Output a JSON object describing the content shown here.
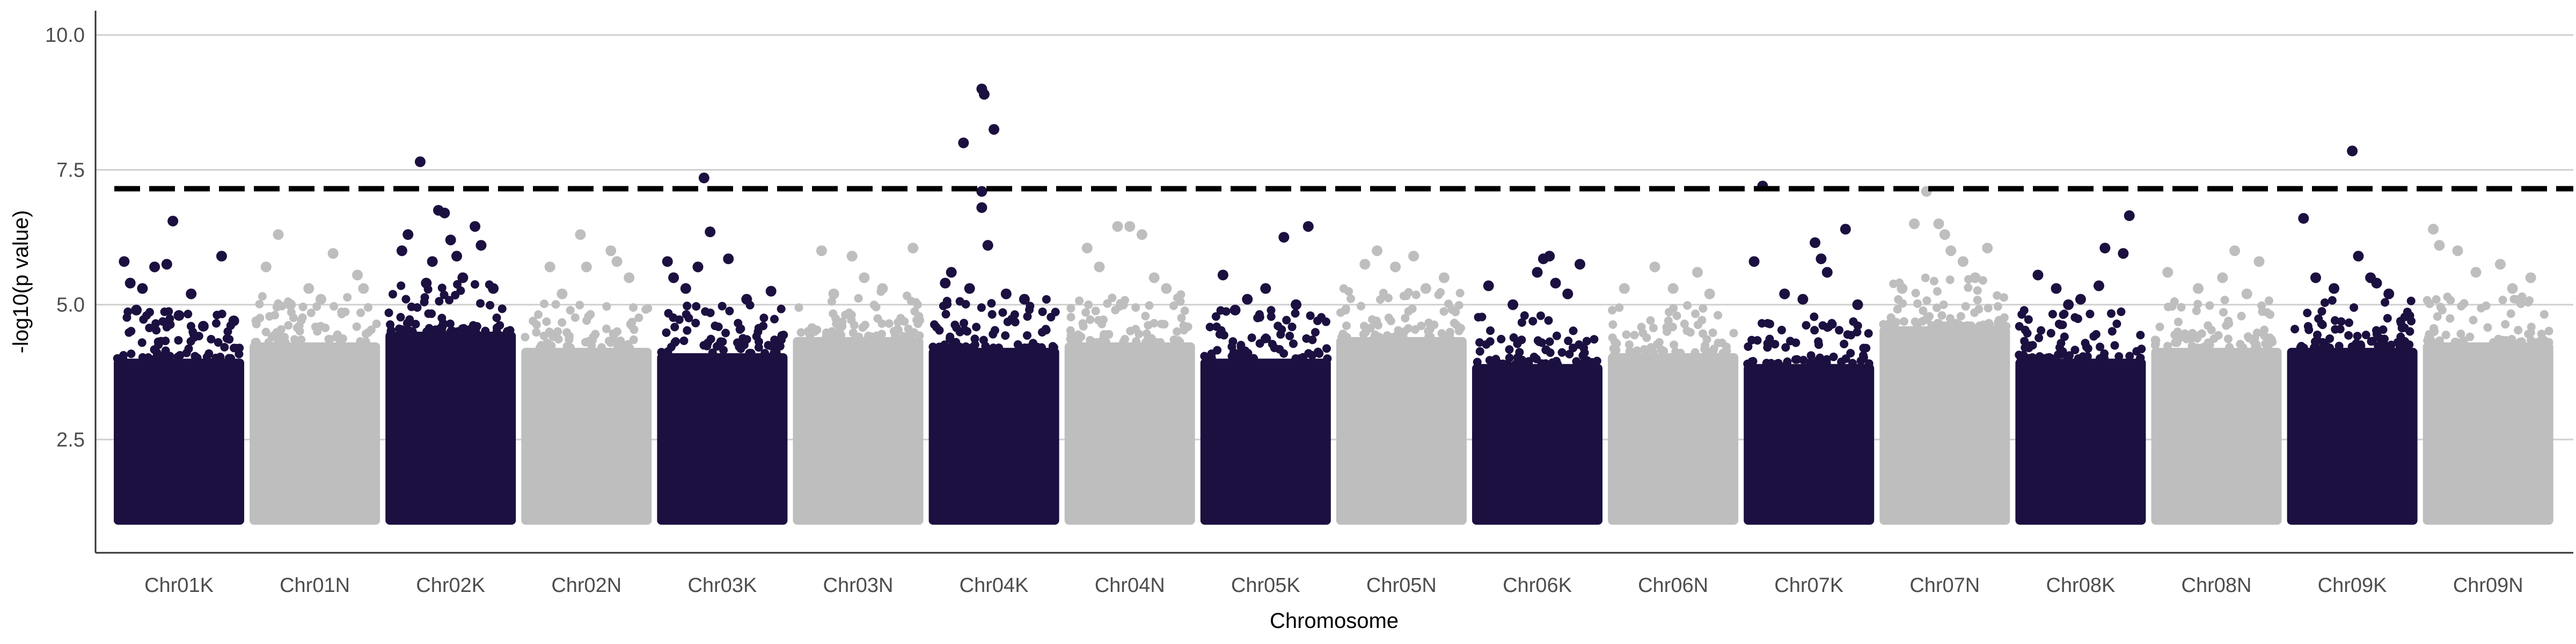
{
  "chart_data": {
    "type": "scatter",
    "xlabel": "Chromosome",
    "ylabel": "-log10(p value)",
    "ylim": [
      0.4,
      10.45
    ],
    "yticks": [
      2.5,
      5.0,
      7.5,
      10.0
    ],
    "ytick_labels": [
      "2.5",
      "5.0",
      "7.5",
      "10.0"
    ],
    "categories": [
      "Chr01K",
      "Chr01N",
      "Chr02K",
      "Chr02N",
      "Chr03K",
      "Chr03N",
      "Chr04K",
      "Chr04N",
      "Chr05K",
      "Chr05N",
      "Chr06K",
      "Chr06N",
      "Chr07K",
      "Chr07N",
      "Chr08K",
      "Chr08N",
      "Chr09K",
      "Chr09N"
    ],
    "threshold": 7.15,
    "point_floor": 1.0,
    "colors": {
      "K": "#1c1040",
      "N": "#bebebe",
      "grid": "#d0d0d0",
      "axis": "#333333",
      "threshold": "#000000"
    },
    "grid": true,
    "legend": "none",
    "series": [
      {
        "chromosome": "Chr01K",
        "dense_top": 4.0,
        "top_points": [
          [
            0.05,
            5.8
          ],
          [
            0.1,
            5.4
          ],
          [
            0.2,
            5.3
          ],
          [
            0.3,
            5.7
          ],
          [
            0.4,
            5.75
          ],
          [
            0.45,
            6.55
          ],
          [
            0.6,
            5.2
          ],
          [
            0.85,
            5.9
          ],
          [
            0.5,
            4.8
          ],
          [
            0.7,
            4.6
          ],
          [
            0.15,
            4.9
          ],
          [
            0.95,
            4.7
          ]
        ]
      },
      {
        "chromosome": "Chr01N",
        "dense_top": 4.3,
        "top_points": [
          [
            0.1,
            5.7
          ],
          [
            0.2,
            6.3
          ],
          [
            0.3,
            5.0
          ],
          [
            0.45,
            5.3
          ],
          [
            0.65,
            5.95
          ],
          [
            0.85,
            5.55
          ],
          [
            0.9,
            5.3
          ],
          [
            0.55,
            5.1
          ]
        ]
      },
      {
        "chromosome": "Chr02K",
        "dense_top": 4.5,
        "top_points": [
          [
            0.1,
            6.0
          ],
          [
            0.15,
            6.3
          ],
          [
            0.25,
            7.65
          ],
          [
            0.4,
            6.75
          ],
          [
            0.45,
            6.7
          ],
          [
            0.5,
            6.2
          ],
          [
            0.7,
            6.45
          ],
          [
            0.75,
            6.1
          ],
          [
            0.35,
            5.8
          ],
          [
            0.55,
            5.9
          ],
          [
            0.6,
            5.5
          ],
          [
            0.85,
            5.3
          ],
          [
            0.3,
            5.4
          ]
        ]
      },
      {
        "chromosome": "Chr02N",
        "dense_top": 4.2,
        "top_points": [
          [
            0.2,
            5.7
          ],
          [
            0.45,
            6.3
          ],
          [
            0.5,
            5.7
          ],
          [
            0.7,
            6.0
          ],
          [
            0.75,
            5.8
          ],
          [
            0.85,
            5.5
          ],
          [
            0.3,
            5.2
          ]
        ]
      },
      {
        "chromosome": "Chr03K",
        "dense_top": 4.1,
        "top_points": [
          [
            0.05,
            5.8
          ],
          [
            0.1,
            5.5
          ],
          [
            0.3,
            5.7
          ],
          [
            0.35,
            7.35
          ],
          [
            0.4,
            6.35
          ],
          [
            0.55,
            5.85
          ],
          [
            0.9,
            5.25
          ],
          [
            0.7,
            5.1
          ],
          [
            0.2,
            5.3
          ]
        ]
      },
      {
        "chromosome": "Chr03N",
        "dense_top": 4.4,
        "top_points": [
          [
            0.2,
            6.0
          ],
          [
            0.45,
            5.9
          ],
          [
            0.55,
            5.5
          ],
          [
            0.95,
            6.05
          ],
          [
            0.7,
            5.3
          ],
          [
            0.3,
            5.2
          ]
        ]
      },
      {
        "chromosome": "Chr04K",
        "dense_top": 4.2,
        "top_points": [
          [
            0.25,
            8.0
          ],
          [
            0.4,
            9.0
          ],
          [
            0.42,
            8.9
          ],
          [
            0.5,
            8.25
          ],
          [
            0.4,
            7.1
          ],
          [
            0.4,
            6.8
          ],
          [
            0.45,
            6.1
          ],
          [
            0.15,
            5.6
          ],
          [
            0.3,
            5.3
          ],
          [
            0.6,
            5.2
          ],
          [
            0.75,
            5.1
          ],
          [
            0.1,
            5.4
          ]
        ]
      },
      {
        "chromosome": "Chr04N",
        "dense_top": 4.3,
        "top_points": [
          [
            0.15,
            6.05
          ],
          [
            0.4,
            6.45
          ],
          [
            0.5,
            6.45
          ],
          [
            0.6,
            6.3
          ],
          [
            0.25,
            5.7
          ],
          [
            0.8,
            5.3
          ],
          [
            0.7,
            5.5
          ]
        ]
      },
      {
        "chromosome": "Chr05K",
        "dense_top": 4.0,
        "top_points": [
          [
            0.15,
            5.55
          ],
          [
            0.35,
            5.1
          ],
          [
            0.5,
            5.3
          ],
          [
            0.65,
            6.25
          ],
          [
            0.85,
            6.45
          ],
          [
            0.75,
            5.0
          ],
          [
            0.25,
            4.9
          ]
        ]
      },
      {
        "chromosome": "Chr05N",
        "dense_top": 4.4,
        "top_points": [
          [
            0.2,
            5.75
          ],
          [
            0.3,
            6.0
          ],
          [
            0.45,
            5.7
          ],
          [
            0.6,
            5.9
          ],
          [
            0.85,
            5.5
          ],
          [
            0.7,
            5.3
          ]
        ]
      },
      {
        "chromosome": "Chr06K",
        "dense_top": 3.9,
        "top_points": [
          [
            0.1,
            5.35
          ],
          [
            0.5,
            5.6
          ],
          [
            0.55,
            5.85
          ],
          [
            0.6,
            5.9
          ],
          [
            0.85,
            5.75
          ],
          [
            0.65,
            5.4
          ],
          [
            0.3,
            5.0
          ],
          [
            0.75,
            5.2
          ]
        ]
      },
      {
        "chromosome": "Chr06N",
        "dense_top": 4.1,
        "top_points": [
          [
            0.1,
            5.3
          ],
          [
            0.35,
            5.7
          ],
          [
            0.5,
            5.3
          ],
          [
            0.7,
            5.6
          ],
          [
            0.8,
            5.2
          ]
        ]
      },
      {
        "chromosome": "Chr07K",
        "dense_top": 3.9,
        "top_points": [
          [
            0.12,
            7.2
          ],
          [
            0.05,
            5.8
          ],
          [
            0.55,
            6.15
          ],
          [
            0.6,
            5.85
          ],
          [
            0.65,
            5.6
          ],
          [
            0.8,
            6.4
          ],
          [
            0.3,
            5.2
          ],
          [
            0.9,
            5.0
          ],
          [
            0.45,
            5.1
          ]
        ]
      },
      {
        "chromosome": "Chr07N",
        "dense_top": 4.6,
        "top_points": [
          [
            0.25,
            6.5
          ],
          [
            0.35,
            7.1
          ],
          [
            0.45,
            6.5
          ],
          [
            0.5,
            6.3
          ],
          [
            0.55,
            6.0
          ],
          [
            0.65,
            5.8
          ],
          [
            0.85,
            6.05
          ],
          [
            0.15,
            5.3
          ],
          [
            0.75,
            5.5
          ]
        ]
      },
      {
        "chromosome": "Chr08K",
        "dense_top": 4.0,
        "top_points": [
          [
            0.15,
            5.55
          ],
          [
            0.3,
            5.3
          ],
          [
            0.5,
            5.1
          ],
          [
            0.65,
            5.35
          ],
          [
            0.9,
            6.65
          ],
          [
            0.85,
            5.95
          ],
          [
            0.7,
            6.05
          ],
          [
            0.4,
            5.0
          ]
        ]
      },
      {
        "chromosome": "Chr08N",
        "dense_top": 4.2,
        "top_points": [
          [
            0.1,
            5.6
          ],
          [
            0.35,
            5.3
          ],
          [
            0.55,
            5.5
          ],
          [
            0.65,
            6.0
          ],
          [
            0.85,
            5.8
          ],
          [
            0.75,
            5.2
          ]
        ]
      },
      {
        "chromosome": "Chr09K",
        "dense_top": 4.2,
        "top_points": [
          [
            0.1,
            6.6
          ],
          [
            0.2,
            5.5
          ],
          [
            0.35,
            5.3
          ],
          [
            0.5,
            7.85
          ],
          [
            0.55,
            5.9
          ],
          [
            0.65,
            5.5
          ],
          [
            0.8,
            5.2
          ],
          [
            0.7,
            5.4
          ]
        ]
      },
      {
        "chromosome": "Chr09N",
        "dense_top": 4.3,
        "top_points": [
          [
            0.05,
            6.4
          ],
          [
            0.1,
            6.1
          ],
          [
            0.25,
            6.0
          ],
          [
            0.4,
            5.6
          ],
          [
            0.6,
            5.75
          ],
          [
            0.85,
            5.5
          ],
          [
            0.7,
            5.3
          ]
        ]
      }
    ]
  }
}
